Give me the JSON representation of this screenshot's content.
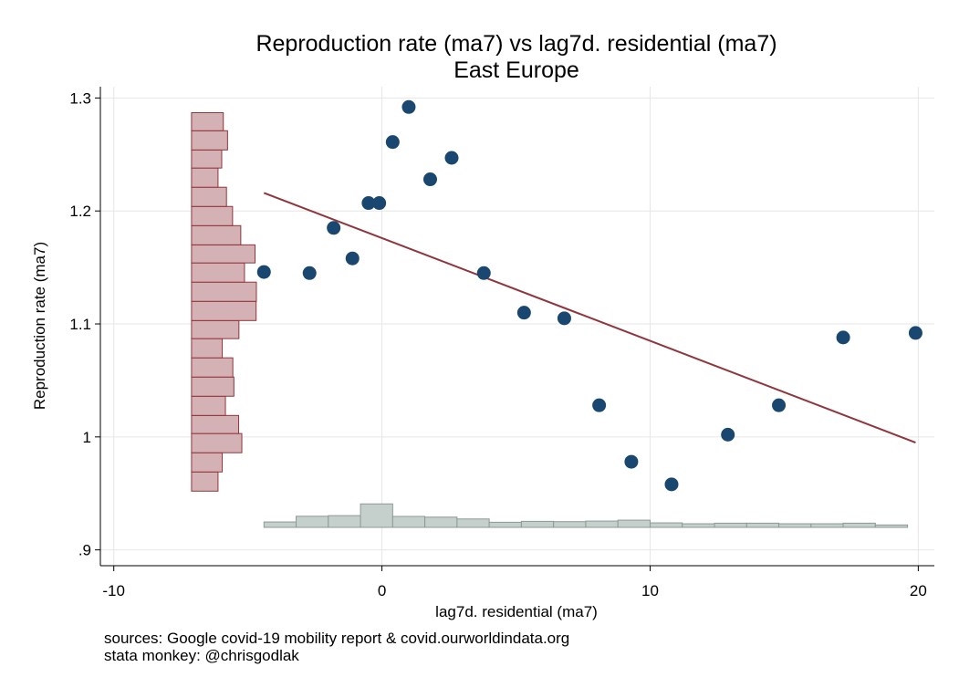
{
  "chart_data": {
    "type": "scatter",
    "title": "Reproduction rate (ma7) vs lag7d. residential (ma7)",
    "subtitle": "East Europe",
    "xlabel": "lag7d. residential (ma7)",
    "ylabel": "Reproduction rate (ma7)",
    "xlim": [
      -10.5,
      20.6
    ],
    "ylim": [
      0.886,
      1.31
    ],
    "x_ticks": [
      -10,
      0,
      10,
      20
    ],
    "x_tick_labels": [
      "-10",
      "0",
      "10",
      "20"
    ],
    "y_ticks": [
      0.9,
      1.0,
      1.1,
      1.2,
      1.3
    ],
    "y_tick_labels": [
      ".9",
      "1",
      "1.1",
      "1.2",
      "1.3"
    ],
    "grid": true,
    "legend": "none",
    "colors": {
      "points": "#1a476f",
      "fit_line": "#90353b",
      "y_hist_fill": "#d4b1b4",
      "y_hist_stroke": "#90353b",
      "x_hist_fill": "#c5d0cc",
      "x_hist_stroke": "#8c9a96",
      "grid": "#e6e6e6"
    },
    "points": [
      {
        "x": -4.4,
        "y": 1.146
      },
      {
        "x": -2.7,
        "y": 1.145
      },
      {
        "x": -1.8,
        "y": 1.185
      },
      {
        "x": -1.1,
        "y": 1.158
      },
      {
        "x": -0.5,
        "y": 1.207
      },
      {
        "x": -0.1,
        "y": 1.207
      },
      {
        "x": 0.4,
        "y": 1.261
      },
      {
        "x": 1.0,
        "y": 1.292
      },
      {
        "x": 1.8,
        "y": 1.228
      },
      {
        "x": 2.6,
        "y": 1.247
      },
      {
        "x": 3.8,
        "y": 1.145
      },
      {
        "x": 5.3,
        "y": 1.11
      },
      {
        "x": 6.8,
        "y": 1.105
      },
      {
        "x": 8.1,
        "y": 1.028
      },
      {
        "x": 9.3,
        "y": 0.978
      },
      {
        "x": 10.8,
        "y": 0.958
      },
      {
        "x": 12.9,
        "y": 1.002
      },
      {
        "x": 14.8,
        "y": 1.028
      },
      {
        "x": 17.2,
        "y": 1.088
      },
      {
        "x": 19.9,
        "y": 1.092
      }
    ],
    "fit_line": {
      "x": [
        -4.4,
        19.9
      ],
      "y": [
        1.216,
        0.995
      ]
    },
    "y_histogram": {
      "bin_edges": [
        0.952,
        0.969,
        0.986,
        1.003,
        1.019,
        1.036,
        1.053,
        1.07,
        1.087,
        1.103,
        1.12,
        1.137,
        1.154,
        1.17,
        1.187,
        1.204,
        1.221,
        1.238,
        1.254,
        1.271,
        1.287
      ],
      "densities": [
        1.0,
        1.16,
        1.9,
        1.78,
        1.28,
        1.6,
        1.56,
        1.16,
        1.79,
        2.44,
        2.45,
        2.0,
        2.4,
        1.86,
        1.55,
        1.32,
        1.0,
        1.14,
        1.36,
        1.2
      ]
    },
    "x_histogram": {
      "bin_edges": [
        -4.4,
        -3.2,
        -2.0,
        -0.8,
        0.4,
        1.6,
        2.8,
        4.0,
        5.2,
        6.4,
        7.6,
        8.8,
        10.0,
        11.2,
        12.4,
        13.6,
        14.8,
        16.0,
        17.2,
        18.4,
        19.6
      ],
      "densities": [
        0.9,
        1.85,
        1.95,
        3.9,
        1.82,
        1.7,
        1.4,
        0.85,
        1.0,
        0.95,
        1.05,
        1.2,
        0.75,
        0.6,
        0.7,
        0.7,
        0.6,
        0.6,
        0.7,
        0.4
      ]
    }
  },
  "notes": {
    "line1": "sources: Google covid-19 mobility report & covid.ourworldindata.org",
    "line2": "stata monkey: @chrisgodlak"
  }
}
